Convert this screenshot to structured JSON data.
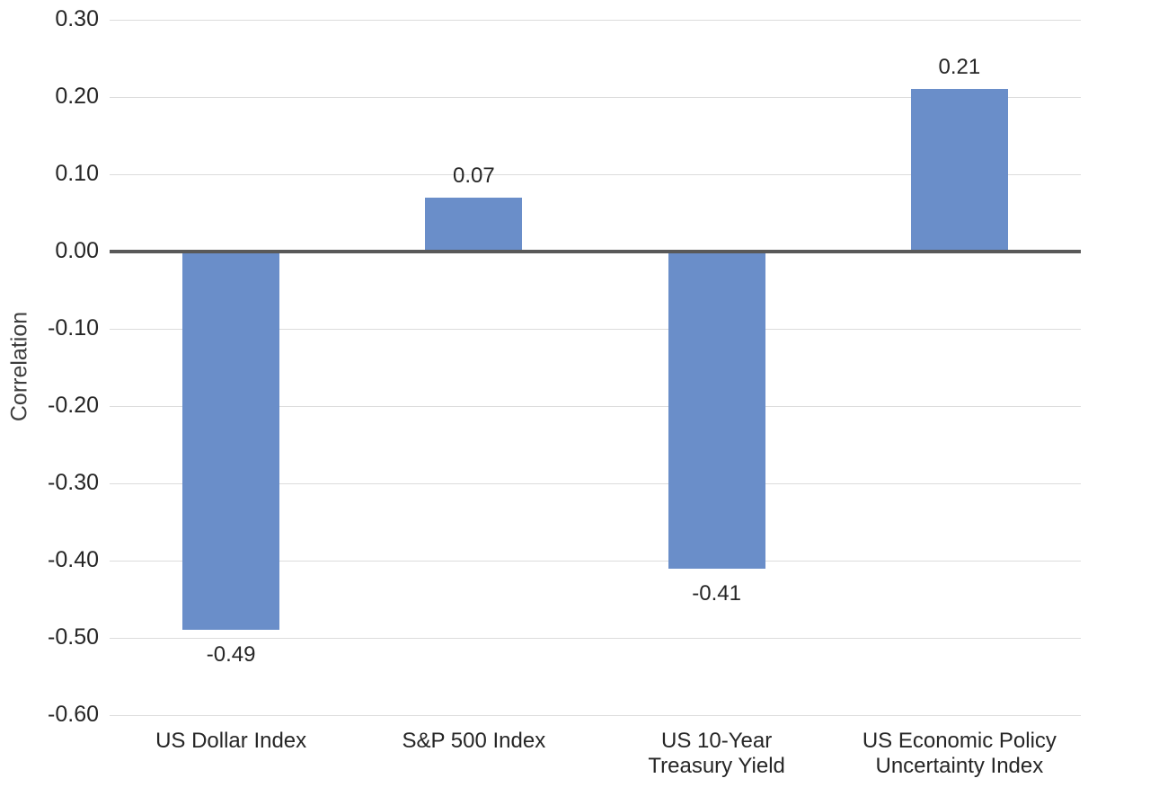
{
  "chart_data": {
    "type": "bar",
    "title": "",
    "ylabel": "Correlation",
    "xlabel": "",
    "categories": [
      "US Dollar Index",
      "S&P 500 Index",
      "US 10-Year\nTreasury Yield",
      "US Economic Policy\nUncertainty Index"
    ],
    "values": [
      -0.49,
      0.07,
      -0.41,
      0.21
    ],
    "data_labels": [
      "-0.49",
      "0.07",
      "-0.41",
      "0.21"
    ],
    "ylim": [
      -0.6,
      0.3
    ],
    "ytick_step": 0.1,
    "yticks": [
      0.3,
      0.2,
      0.1,
      0.0,
      -0.1,
      -0.2,
      -0.3,
      -0.4,
      -0.5,
      -0.6
    ],
    "ytick_labels": [
      "0.30",
      "0.20",
      "0.10",
      "0.00",
      "-0.10",
      "-0.20",
      "-0.30",
      "-0.40",
      "-0.50",
      "-0.60"
    ],
    "grid": true,
    "legend": "none",
    "colors": {
      "bar": "#6A8EC9",
      "zero_line": "#595959",
      "gridline": "#dcdcdc",
      "text": "#262626"
    }
  }
}
